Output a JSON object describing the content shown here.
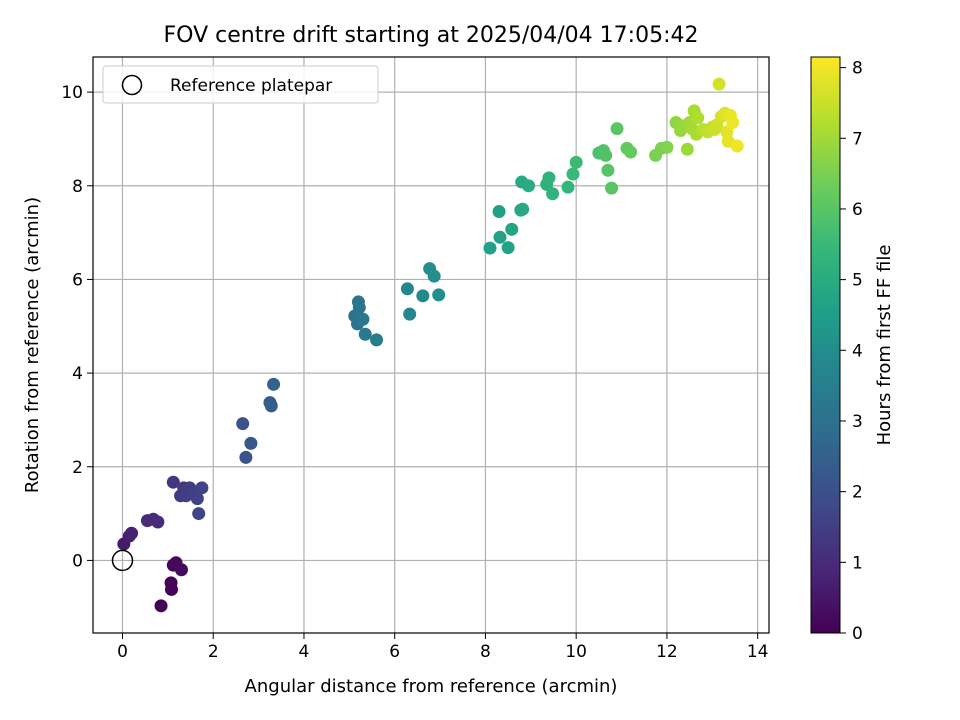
{
  "chart_data": {
    "type": "scatter",
    "title": "FOV centre drift starting at 2025/04/04 17:05:42",
    "xlabel": "Angular distance from reference (arcmin)",
    "ylabel": "Rotation from reference (arcmin)",
    "xlim": [
      -0.65,
      14.25
    ],
    "ylim": [
      -1.55,
      10.75
    ],
    "xticks": [
      0,
      2,
      4,
      6,
      8,
      10,
      12,
      14
    ],
    "yticks": [
      0,
      2,
      4,
      6,
      8,
      10
    ],
    "grid": true,
    "legend": {
      "placement": "top-left",
      "entries": [
        "Reference platepar"
      ]
    },
    "reference": {
      "x": 0,
      "y": 0,
      "label": "Reference platepar"
    },
    "colorbar": {
      "label": "Hours from first FF file",
      "colormap": "viridis",
      "range": [
        0,
        8.15
      ],
      "ticks": [
        0,
        1,
        2,
        3,
        4,
        5,
        6,
        7,
        8
      ]
    },
    "points": [
      [
        0.85,
        -0.97,
        0.05
      ],
      [
        1.08,
        -0.62,
        0.1
      ],
      [
        1.07,
        -0.48,
        0.12
      ],
      [
        1.12,
        -0.1,
        0.18
      ],
      [
        1.18,
        -0.05,
        0.2
      ],
      [
        1.3,
        -0.2,
        0.22
      ],
      [
        0.03,
        0.35,
        0.6
      ],
      [
        0.15,
        0.52,
        0.7
      ],
      [
        0.2,
        0.58,
        0.75
      ],
      [
        0.55,
        0.85,
        0.95
      ],
      [
        0.68,
        0.88,
        1.0
      ],
      [
        0.78,
        0.82,
        1.05
      ],
      [
        1.12,
        1.67,
        1.3
      ],
      [
        1.28,
        1.38,
        1.35
      ],
      [
        1.35,
        1.55,
        1.4
      ],
      [
        1.48,
        1.55,
        1.45
      ],
      [
        1.4,
        1.38,
        1.5
      ],
      [
        1.55,
        1.42,
        1.55
      ],
      [
        1.65,
        1.32,
        1.6
      ],
      [
        1.75,
        1.55,
        1.65
      ],
      [
        1.68,
        1.0,
        1.7
      ],
      [
        2.65,
        2.92,
        2.05
      ],
      [
        2.72,
        2.2,
        2.15
      ],
      [
        2.83,
        2.5,
        2.2
      ],
      [
        3.25,
        3.37,
        2.35
      ],
      [
        3.28,
        3.3,
        2.4
      ],
      [
        3.33,
        3.76,
        2.5
      ],
      [
        5.12,
        5.22,
        3.05
      ],
      [
        5.18,
        5.05,
        3.1
      ],
      [
        5.2,
        5.52,
        3.15
      ],
      [
        5.22,
        5.4,
        3.2
      ],
      [
        5.3,
        5.15,
        3.25
      ],
      [
        5.35,
        4.83,
        3.3
      ],
      [
        5.6,
        4.71,
        3.4
      ],
      [
        6.28,
        5.8,
        3.7
      ],
      [
        6.33,
        5.26,
        3.75
      ],
      [
        6.62,
        5.65,
        3.85
      ],
      [
        6.77,
        6.23,
        3.95
      ],
      [
        6.87,
        6.07,
        4.0
      ],
      [
        6.97,
        5.67,
        4.05
      ],
      [
        8.1,
        6.67,
        4.55
      ],
      [
        8.3,
        7.45,
        4.6
      ],
      [
        8.32,
        6.9,
        4.65
      ],
      [
        8.5,
        6.68,
        4.7
      ],
      [
        8.58,
        7.07,
        4.75
      ],
      [
        8.78,
        7.48,
        4.85
      ],
      [
        8.82,
        7.5,
        4.9
      ],
      [
        8.8,
        8.08,
        4.95
      ],
      [
        8.95,
        8.0,
        5.0
      ],
      [
        9.35,
        8.03,
        5.2
      ],
      [
        9.4,
        8.17,
        5.25
      ],
      [
        9.48,
        7.83,
        5.3
      ],
      [
        9.82,
        7.97,
        5.4
      ],
      [
        9.93,
        8.25,
        5.5
      ],
      [
        10.0,
        8.5,
        5.55
      ],
      [
        10.5,
        8.7,
        5.8
      ],
      [
        10.6,
        8.75,
        5.85
      ],
      [
        10.65,
        8.65,
        5.9
      ],
      [
        10.7,
        8.33,
        5.95
      ],
      [
        10.78,
        7.95,
        6.0
      ],
      [
        10.9,
        9.22,
        6.05
      ],
      [
        11.12,
        8.8,
        6.15
      ],
      [
        11.2,
        8.72,
        6.2
      ],
      [
        11.75,
        8.65,
        6.5
      ],
      [
        11.88,
        8.8,
        6.55
      ],
      [
        12.0,
        8.82,
        6.6
      ],
      [
        12.2,
        9.35,
        6.8
      ],
      [
        12.3,
        9.18,
        6.85
      ],
      [
        12.35,
        9.28,
        6.9
      ],
      [
        12.45,
        8.78,
        6.95
      ],
      [
        12.5,
        9.35,
        7.0
      ],
      [
        12.55,
        9.22,
        7.05
      ],
      [
        12.6,
        9.6,
        7.1
      ],
      [
        12.65,
        9.1,
        7.15
      ],
      [
        12.68,
        9.45,
        7.2
      ],
      [
        12.8,
        9.2,
        7.3
      ],
      [
        12.9,
        9.15,
        7.4
      ],
      [
        13.0,
        9.25,
        7.45
      ],
      [
        13.05,
        9.2,
        7.5
      ],
      [
        13.1,
        9.3,
        7.55
      ],
      [
        13.15,
        10.17,
        7.6
      ],
      [
        13.2,
        9.48,
        7.65
      ],
      [
        13.28,
        9.55,
        7.75
      ],
      [
        13.32,
        9.15,
        7.8
      ],
      [
        13.35,
        8.95,
        7.85
      ],
      [
        13.4,
        9.5,
        7.9
      ],
      [
        13.45,
        9.35,
        7.95
      ],
      [
        13.55,
        8.85,
        8.0
      ]
    ]
  }
}
